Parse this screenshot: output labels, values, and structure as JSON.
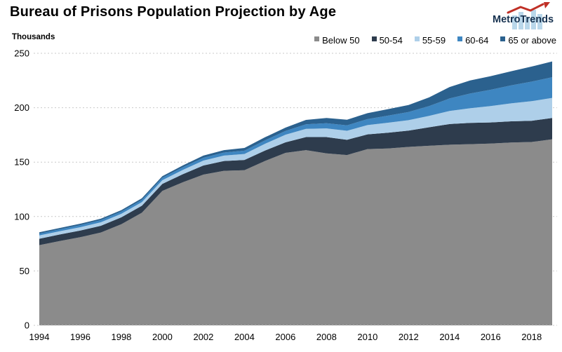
{
  "header": {
    "title": "Bureau of Prisons Population Projection by Age",
    "logo_text": "MetroTrends"
  },
  "axis": {
    "unit_label": "Thousands",
    "y_ticks": [
      0,
      50,
      100,
      150,
      200,
      250
    ],
    "x_tick_years": [
      1994,
      1996,
      1998,
      2000,
      2002,
      2004,
      2006,
      2008,
      2010,
      2012,
      2014,
      2016,
      2018
    ]
  },
  "colors": {
    "gridline": "#c9c9c9",
    "logo_text": "#16314f",
    "logo_arrow": "#c03026",
    "logo_bars": "#b9d7ea"
  },
  "chart_data": {
    "type": "area",
    "stacked": true,
    "title": "Bureau of Prisons Population Projection by Age",
    "xlabel": "",
    "ylabel": "Thousands",
    "ylim": [
      0,
      250
    ],
    "grid": "dashed-horizontal",
    "legend_position": "top-right",
    "x": [
      1994,
      1995,
      1996,
      1997,
      1998,
      1999,
      2000,
      2001,
      2002,
      2003,
      2004,
      2005,
      2006,
      2007,
      2008,
      2009,
      2010,
      2011,
      2012,
      2013,
      2014,
      2015,
      2016,
      2017,
      2018,
      2019
    ],
    "series": [
      {
        "name": "Below 50",
        "color": "#8b8b8b",
        "values": [
          73.7,
          77.5,
          81.0,
          85.3,
          93.0,
          103.5,
          123.5,
          131.5,
          138.5,
          142.0,
          142.5,
          151.0,
          158.5,
          161.0,
          158.0,
          156.5,
          162.0,
          162.5,
          164.0,
          165.0,
          166.0,
          166.5,
          167.0,
          168.0,
          168.5,
          171.0
        ]
      },
      {
        "name": "50-54",
        "color": "#2e3c4d",
        "values": [
          5.9,
          6.0,
          6.1,
          6.2,
          6.3,
          6.4,
          6.5,
          7.4,
          8.4,
          9.0,
          9.5,
          9.6,
          9.7,
          12.0,
          15.0,
          14.0,
          13.5,
          14.5,
          15.0,
          17.0,
          19.0,
          19.5,
          19.5,
          19.5,
          19.5,
          19.5
        ]
      },
      {
        "name": "55-59",
        "color": "#aecfe9",
        "values": [
          3.0,
          3.0,
          3.1,
          3.2,
          3.2,
          3.3,
          3.4,
          4.0,
          4.5,
          5.0,
          5.5,
          6.2,
          7.0,
          7.6,
          8.0,
          8.3,
          8.5,
          9.2,
          9.5,
          10.5,
          12.0,
          13.5,
          15.0,
          16.5,
          18.0,
          18.5
        ]
      },
      {
        "name": "60-64",
        "color": "#3e86c1",
        "values": [
          1.7,
          1.8,
          1.9,
          2.0,
          2.0,
          2.1,
          2.2,
          2.4,
          2.6,
          2.8,
          3.0,
          3.2,
          3.5,
          4.2,
          4.7,
          5.0,
          5.5,
          6.5,
          7.5,
          9.0,
          11.5,
          13.5,
          15.0,
          16.5,
          18.0,
          19.0
        ]
      },
      {
        "name": "65 or above",
        "color": "#2b618e",
        "values": [
          1.2,
          1.2,
          1.3,
          1.3,
          1.4,
          1.5,
          1.5,
          1.7,
          2.0,
          2.2,
          2.5,
          2.8,
          3.0,
          4.0,
          4.8,
          5.2,
          5.5,
          6.0,
          6.5,
          8.0,
          10.5,
          12.0,
          12.5,
          13.0,
          13.8,
          14.5
        ]
      }
    ]
  }
}
